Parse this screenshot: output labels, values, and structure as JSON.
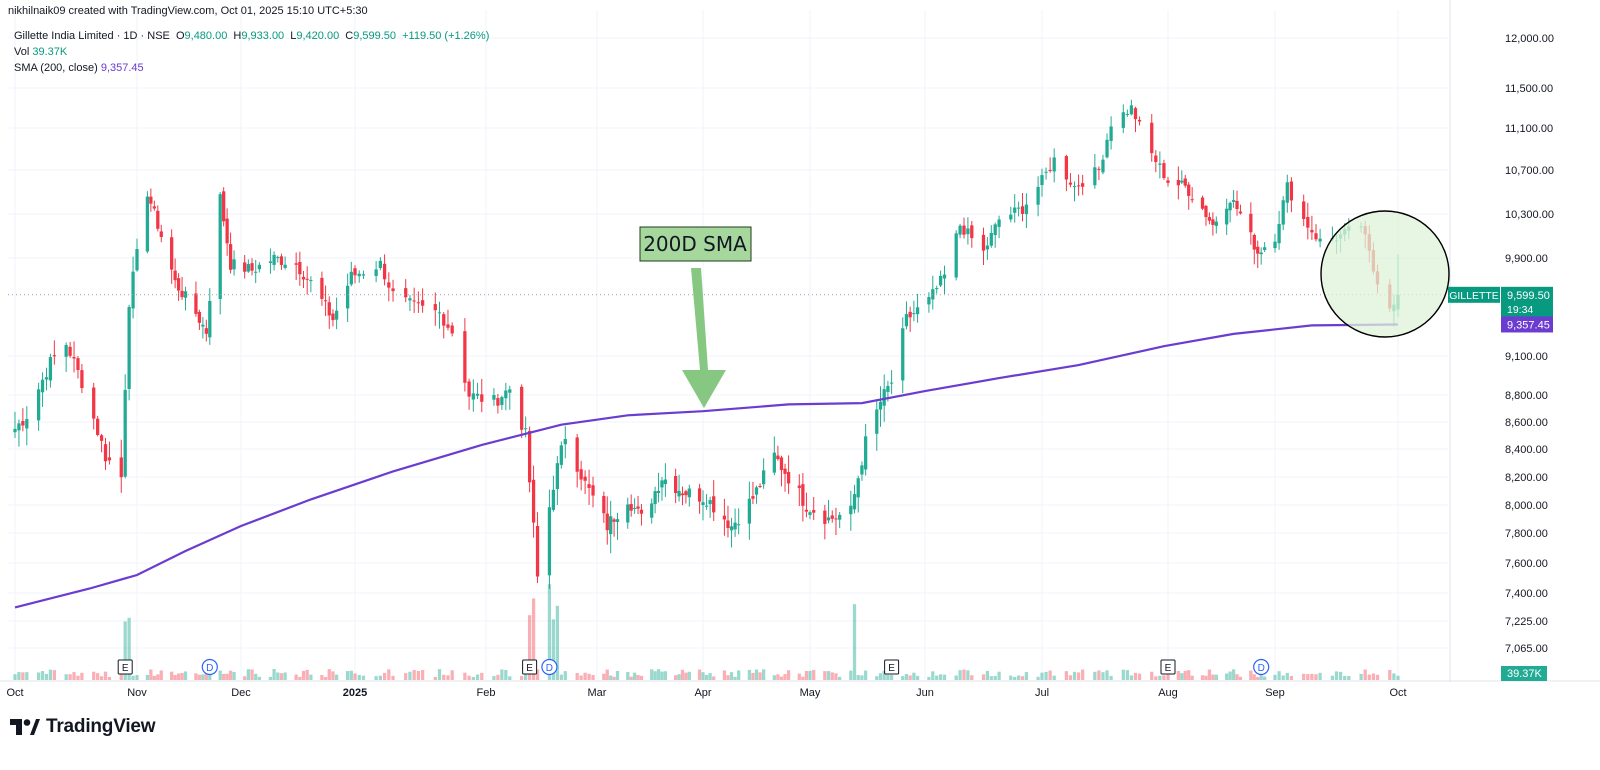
{
  "header": {
    "credit": "nikhilnaik09 created with TradingView.com, Oct 01, 2025 15:10 UTC+5:30"
  },
  "legend": {
    "symbol": "Gillette India Limited · 1D · NSE",
    "open_label": "O",
    "open": "9,480.00",
    "high_label": "H",
    "high": "9,933.00",
    "low_label": "L",
    "low": "9,420.00",
    "close_label": "C",
    "close": "9,599.50",
    "change": "+119.50 (+1.26%)",
    "vol_label": "Vol",
    "vol": "39.37K",
    "sma_label": "SMA (200, close)",
    "sma": "9,357.45"
  },
  "annotation": {
    "text": "200D SMA"
  },
  "price_tags": {
    "symbol": "GILLETTE",
    "price": "9,599.50",
    "countdown": "19:34",
    "sma": "9,357.45",
    "volume": "39.37K"
  },
  "event_markers": [
    {
      "letter": "E",
      "date": "2024-10-29"
    },
    {
      "letter": "D",
      "date": "2024-11-22"
    },
    {
      "letter": "E",
      "date": "2025-02-12"
    },
    {
      "letter": "D",
      "date": "2025-02-17"
    },
    {
      "letter": "E",
      "date": "2025-05-23"
    },
    {
      "letter": "E",
      "date": "2025-08-01"
    },
    {
      "letter": "D",
      "date": "2025-08-28"
    }
  ],
  "footer": {
    "brand": "TradingView"
  },
  "colors": {
    "up": "#22ab94",
    "down": "#f23645",
    "sma": "#6a3ccf",
    "annotation_bg": "#a6d89e",
    "circle_fill": "#dff3d8",
    "tag_green": "#089981"
  },
  "chart_data": {
    "type": "candlestick",
    "y_axis_ticks": [
      "12,000.00",
      "11,500.00",
      "11,100.00",
      "10,700.00",
      "10,300.00",
      "9,900.00",
      "9,100.00",
      "8,800.00",
      "8,600.00",
      "8,400.00",
      "8,200.00",
      "8,000.00",
      "7,800.00",
      "7,600.00",
      "7,400.00",
      "7,225.00",
      "7,065.00"
    ],
    "y_axis_tick_values": [
      12000,
      11500,
      11100,
      10700,
      10300,
      9900,
      9100,
      8800,
      8600,
      8400,
      8200,
      8000,
      7800,
      7600,
      7400,
      7225,
      7065
    ],
    "x_axis_ticks": [
      {
        "label": "Oct",
        "date": "2024-10-01",
        "bold": false
      },
      {
        "label": "Nov",
        "date": "2024-11-01",
        "bold": false
      },
      {
        "label": "Dec",
        "date": "2024-12-01",
        "bold": false
      },
      {
        "label": "2025",
        "date": "2025-01-01",
        "bold": true
      },
      {
        "label": "Feb",
        "date": "2025-02-01",
        "bold": false
      },
      {
        "label": "Mar",
        "date": "2025-03-01",
        "bold": false
      },
      {
        "label": "Apr",
        "date": "2025-04-01",
        "bold": false
      },
      {
        "label": "May",
        "date": "2025-05-01",
        "bold": false
      },
      {
        "label": "Jun",
        "date": "2025-06-01",
        "bold": false
      },
      {
        "label": "Jul",
        "date": "2025-07-01",
        "bold": false
      },
      {
        "label": "Aug",
        "date": "2025-08-01",
        "bold": false
      },
      {
        "label": "Sep",
        "date": "2025-09-01",
        "bold": false
      },
      {
        "label": "Oct",
        "date": "2025-10-01",
        "bold": false
      }
    ],
    "close_keypoints": [
      [
        "2024-10-01",
        8550
      ],
      [
        "2024-10-04",
        8650
      ],
      [
        "2024-10-10",
        9050
      ],
      [
        "2024-10-14",
        9200
      ],
      [
        "2024-10-18",
        8900
      ],
      [
        "2024-10-24",
        8350
      ],
      [
        "2024-10-28",
        8200
      ],
      [
        "2024-10-30",
        9550
      ],
      [
        "2024-11-04",
        10500
      ],
      [
        "2024-11-08",
        10100
      ],
      [
        "2024-11-12",
        9700
      ],
      [
        "2024-11-18",
        9450
      ],
      [
        "2024-11-21",
        9300
      ],
      [
        "2024-11-25",
        10450
      ],
      [
        "2024-11-28",
        9850
      ],
      [
        "2024-12-04",
        9800
      ],
      [
        "2024-12-10",
        9900
      ],
      [
        "2024-12-16",
        9850
      ],
      [
        "2024-12-20",
        9700
      ],
      [
        "2024-12-26",
        9400
      ],
      [
        "2024-12-31",
        9750
      ],
      [
        "2025-01-07",
        9850
      ],
      [
        "2025-01-10",
        9600
      ],
      [
        "2025-01-15",
        9500
      ],
      [
        "2025-01-21",
        9450
      ],
      [
        "2025-01-24",
        9300
      ],
      [
        "2025-01-28",
        8800
      ],
      [
        "2025-02-03",
        8750
      ],
      [
        "2025-02-07",
        8850
      ],
      [
        "2025-02-11",
        8500
      ],
      [
        "2025-02-14",
        7500
      ],
      [
        "2025-02-18",
        8150
      ],
      [
        "2025-02-21",
        8500
      ],
      [
        "2025-02-26",
        8150
      ],
      [
        "2025-03-04",
        7850
      ],
      [
        "2025-03-10",
        8050
      ],
      [
        "2025-03-14",
        7900
      ],
      [
        "2025-03-20",
        8200
      ],
      [
        "2025-03-26",
        8100
      ],
      [
        "2025-04-02",
        8050
      ],
      [
        "2025-04-09",
        7850
      ],
      [
        "2025-04-15",
        8050
      ],
      [
        "2025-04-21",
        8350
      ],
      [
        "2025-04-25",
        8200
      ],
      [
        "2025-04-30",
        8000
      ],
      [
        "2025-05-06",
        7900
      ],
      [
        "2025-05-12",
        7950
      ],
      [
        "2025-05-16",
        8450
      ],
      [
        "2025-05-20",
        8750
      ],
      [
        "2025-05-23",
        8900
      ],
      [
        "2025-05-27",
        9400
      ],
      [
        "2025-06-02",
        9550
      ],
      [
        "2025-06-06",
        9750
      ],
      [
        "2025-06-10",
        10200
      ],
      [
        "2025-06-16",
        9950
      ],
      [
        "2025-06-20",
        10250
      ],
      [
        "2025-06-26",
        10350
      ],
      [
        "2025-07-01",
        10600
      ],
      [
        "2025-07-04",
        10800
      ],
      [
        "2025-07-09",
        10550
      ],
      [
        "2025-07-15",
        10700
      ],
      [
        "2025-07-18",
        11150
      ],
      [
        "2025-07-23",
        11300
      ],
      [
        "2025-07-28",
        10850
      ],
      [
        "2025-08-01",
        10600
      ],
      [
        "2025-08-06",
        10550
      ],
      [
        "2025-08-11",
        10350
      ],
      [
        "2025-08-14",
        10200
      ],
      [
        "2025-08-19",
        10450
      ],
      [
        "2025-08-22",
        10300
      ],
      [
        "2025-08-27",
        9950
      ],
      [
        "2025-09-01",
        10100
      ],
      [
        "2025-09-04",
        10550
      ],
      [
        "2025-09-08",
        10250
      ],
      [
        "2025-09-12",
        10050
      ],
      [
        "2025-09-17",
        10100
      ],
      [
        "2025-09-22",
        10200
      ],
      [
        "2025-09-25",
        9800
      ],
      [
        "2025-09-29",
        9520
      ],
      [
        "2025-10-01",
        9600
      ]
    ],
    "sma_200_keypoints": [
      [
        "2024-10-01",
        7310
      ],
      [
        "2024-10-20",
        7430
      ],
      [
        "2024-11-01",
        7520
      ],
      [
        "2024-11-15",
        7680
      ],
      [
        "2024-12-01",
        7850
      ],
      [
        "2024-12-20",
        8040
      ],
      [
        "2025-01-10",
        8240
      ],
      [
        "2025-01-31",
        8430
      ],
      [
        "2025-02-20",
        8580
      ],
      [
        "2025-03-10",
        8650
      ],
      [
        "2025-04-01",
        8680
      ],
      [
        "2025-04-25",
        8730
      ],
      [
        "2025-05-15",
        8740
      ],
      [
        "2025-06-01",
        8830
      ],
      [
        "2025-06-20",
        8930
      ],
      [
        "2025-07-10",
        9030
      ],
      [
        "2025-07-31",
        9180
      ],
      [
        "2025-08-20",
        9280
      ],
      [
        "2025-09-10",
        9350
      ],
      [
        "2025-10-01",
        9357
      ]
    ],
    "last": {
      "open": 9480,
      "high": 9933,
      "low": 9420,
      "close": 9599.5,
      "sma": 9357.45,
      "volume": "39.37K"
    }
  }
}
